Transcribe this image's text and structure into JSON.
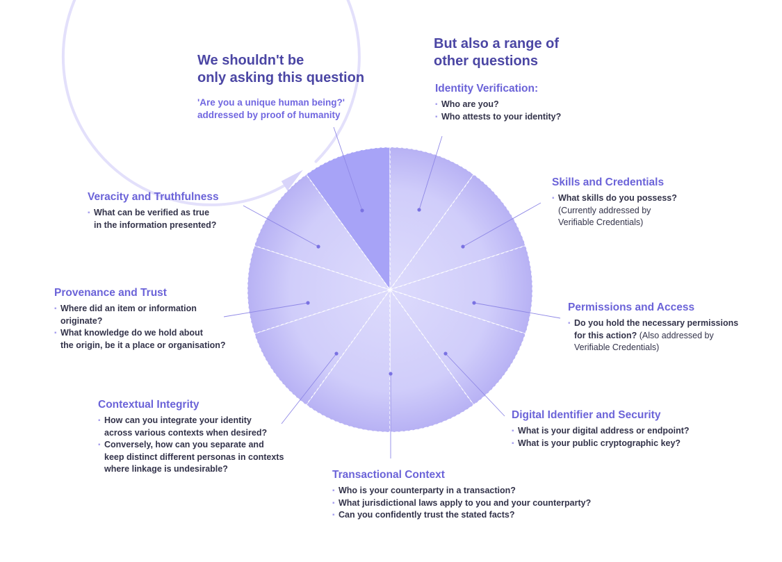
{
  "header_left": {
    "headline": "We shouldn't be\nonly asking this question",
    "question": "'Are you a unique human being?'\naddressed by proof of humanity"
  },
  "header_right": {
    "headline": "But also a range of\nother questions"
  },
  "categories": [
    {
      "title": "Identity Verification:",
      "items": [
        {
          "q": "Who are you?",
          "note": ""
        },
        {
          "q": "Who attests to your identity?",
          "note": ""
        }
      ]
    },
    {
      "title": "Skills and Credentials",
      "items": [
        {
          "q": "What skills do you possess?",
          "note": "\n(Currently addressed by\nVerifiable Credentials)"
        }
      ]
    },
    {
      "title": "Permissions and Access",
      "items": [
        {
          "q": "Do you hold the necessary permissions\nfor this action?",
          "note": " (Also addressed by\nVerifiable Credentials)"
        }
      ]
    },
    {
      "title": "Digital Identifier and Security",
      "items": [
        {
          "q": "What is your digital address or endpoint?",
          "note": ""
        },
        {
          "q": "What is your public cryptographic key?",
          "note": ""
        }
      ]
    },
    {
      "title": "Transactional Context",
      "items": [
        {
          "q": "Who is your counterparty in a transaction?",
          "note": ""
        },
        {
          "q": "What jurisdictional laws apply to you and your counterparty?",
          "note": ""
        },
        {
          "q": "Can you confidently trust the stated facts?",
          "note": ""
        }
      ]
    },
    {
      "title": "Contextual Integrity",
      "items": [
        {
          "q": "How can you integrate your identity\nacross various contexts when desired?",
          "note": ""
        },
        {
          "q": "Conversely, how can you separate and\nkeep distinct different personas in contexts\nwhere linkage is undesirable?",
          "note": ""
        }
      ]
    },
    {
      "title": "Provenance and Trust",
      "items": [
        {
          "q": "Where did an item or information\noriginate?",
          "note": ""
        },
        {
          "q": "What knowledge do we hold about\nthe origin, be it a place or organisation?",
          "note": ""
        }
      ]
    },
    {
      "title": "Veracity and Truthfulness",
      "items": [
        {
          "q": "What can be verified as true\nin the information presented?",
          "note": ""
        }
      ]
    }
  ],
  "colors": {
    "accent": "#6b63d8",
    "headline": "#4b46a4",
    "body_text": "#33334a",
    "wedge_highlight": "#a7a3f7",
    "wedge_light": "#dcdafc",
    "wedge_outer": "#b6b0f4",
    "connector": "#8f88e6",
    "ring": "#e3e0fb"
  }
}
